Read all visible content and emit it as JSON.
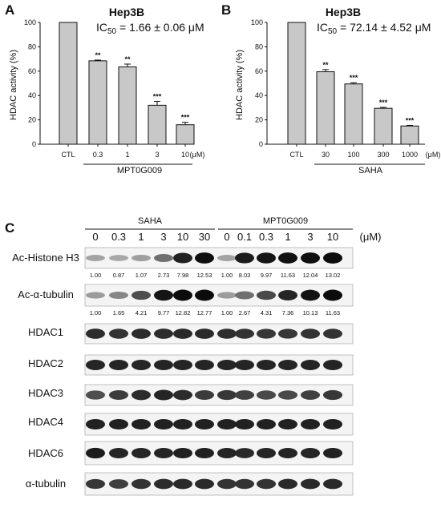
{
  "panels": {
    "a": "A",
    "b": "B",
    "c": "C"
  },
  "chart_data": [
    {
      "type": "bar",
      "title": "Hep3B",
      "ic50_prefix": "IC",
      "ic50_sub": "50",
      "ic50_value": " = 1.66 ± 0.06 μM",
      "ylabel": "HDAC activity (%)",
      "ylim": [
        0,
        100
      ],
      "yticks": [
        "0",
        "20",
        "40",
        "60",
        "80",
        "100"
      ],
      "categories": [
        "CTL",
        "0.3",
        "1",
        "3",
        "10"
      ],
      "unit": "(μM)",
      "group_label": "MPT0G009",
      "values": [
        100,
        68.5,
        63.5,
        32,
        16
      ],
      "errors": [
        0,
        0.6,
        2.3,
        3.2,
        2.0
      ],
      "significance": [
        "",
        "**",
        "**",
        "***",
        "***"
      ]
    },
    {
      "type": "bar",
      "title": "Hep3B",
      "ic50_prefix": "IC",
      "ic50_sub": "50",
      "ic50_value": " = 72.14 ± 4.52 μM",
      "ylabel": "HDAC activity (%)",
      "ylim": [
        0,
        100
      ],
      "yticks": [
        "0",
        "20",
        "40",
        "60",
        "80",
        "100"
      ],
      "categories": [
        "CTL",
        "30",
        "100",
        "300",
        "1000"
      ],
      "unit": "(μM)",
      "group_label": "SAHA",
      "values": [
        100,
        59.5,
        49.5,
        29.5,
        15
      ],
      "errors": [
        0,
        1.8,
        1.0,
        0.8,
        0.5
      ],
      "significance": [
        "",
        "**",
        "***",
        "***",
        "***"
      ]
    },
    {
      "type": "western_blot",
      "groups": [
        "SAHA",
        "MPT0G009"
      ],
      "concentrations": [
        "0",
        "0.3",
        "1",
        "3",
        "10",
        "30",
        "0",
        "0.1",
        "0.3",
        "1",
        "3",
        "10"
      ],
      "unit": "(μM)",
      "rows": [
        {
          "label": "Ac-Histone H3",
          "quant": [
            "1.00",
            "0.87",
            "1.07",
            "2.73",
            "7.98",
            "12.53",
            "1.00",
            "8.03",
            "9.97",
            "11.63",
            "12.04",
            "13.02"
          ],
          "intensity": [
            0.32,
            0.3,
            0.34,
            0.55,
            0.9,
            0.98,
            0.32,
            0.92,
            0.95,
            0.97,
            0.98,
            0.99
          ]
        },
        {
          "label": "Ac-α-tubulin",
          "quant": [
            "1.00",
            "1.65",
            "4.21",
            "9.77",
            "12.82",
            "12.77",
            "1.00",
            "2.67",
            "4.31",
            "7.36",
            "10.13",
            "11.63"
          ],
          "intensity": [
            0.35,
            0.45,
            0.7,
            0.95,
            0.99,
            0.99,
            0.35,
            0.55,
            0.72,
            0.88,
            0.96,
            0.99
          ]
        },
        {
          "label": "HDAC1",
          "quant": [],
          "intensity": [
            0.85,
            0.82,
            0.85,
            0.85,
            0.86,
            0.86,
            0.84,
            0.82,
            0.8,
            0.8,
            0.82,
            0.82
          ]
        },
        {
          "label": "HDAC2",
          "quant": [],
          "intensity": [
            0.88,
            0.88,
            0.88,
            0.88,
            0.88,
            0.88,
            0.88,
            0.88,
            0.88,
            0.88,
            0.88,
            0.88
          ]
        },
        {
          "label": "HDAC3",
          "quant": [],
          "intensity": [
            0.7,
            0.78,
            0.85,
            0.88,
            0.85,
            0.78,
            0.8,
            0.76,
            0.72,
            0.72,
            0.76,
            0.8
          ]
        },
        {
          "label": "HDAC4",
          "quant": [],
          "intensity": [
            0.9,
            0.9,
            0.9,
            0.9,
            0.9,
            0.9,
            0.9,
            0.9,
            0.9,
            0.9,
            0.9,
            0.9
          ]
        },
        {
          "label": "HDAC6",
          "quant": [],
          "intensity": [
            0.92,
            0.88,
            0.88,
            0.88,
            0.9,
            0.9,
            0.88,
            0.86,
            0.88,
            0.88,
            0.88,
            0.9
          ]
        },
        {
          "label": "α-tubulin",
          "quant": [],
          "intensity": [
            0.8,
            0.76,
            0.82,
            0.85,
            0.86,
            0.86,
            0.82,
            0.82,
            0.82,
            0.86,
            0.86,
            0.86
          ]
        }
      ]
    }
  ]
}
